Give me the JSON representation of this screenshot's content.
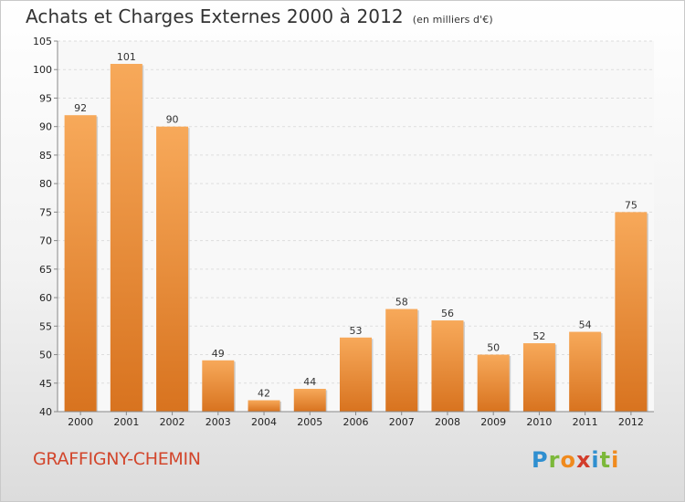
{
  "header": {
    "title": "Achats et Charges Externes 2000 à 2012",
    "subtitle": "(en milliers d'€)"
  },
  "footer": {
    "place": "GRAFFIGNY-CHEMIN",
    "brand_letters": [
      {
        "ch": "P",
        "color": "#2f8fd0"
      },
      {
        "ch": "r",
        "color": "#7cb83a"
      },
      {
        "ch": "o",
        "color": "#f08a1d"
      },
      {
        "ch": "x",
        "color": "#d23c2b"
      },
      {
        "ch": "i",
        "color": "#2f8fd0"
      },
      {
        "ch": "t",
        "color": "#7cb83a"
      },
      {
        "ch": "i",
        "color": "#f08a1d"
      }
    ]
  },
  "chart_data": {
    "type": "bar",
    "categories": [
      "2000",
      "2001",
      "2002",
      "2003",
      "2004",
      "2005",
      "2006",
      "2007",
      "2008",
      "2009",
      "2010",
      "2011",
      "2012"
    ],
    "values": [
      92,
      101,
      90,
      49,
      42,
      44,
      53,
      58,
      56,
      50,
      52,
      54,
      75
    ],
    "ylim": [
      40,
      105
    ],
    "yticks": [
      40,
      45,
      50,
      55,
      60,
      65,
      70,
      75,
      80,
      85,
      90,
      95,
      100,
      105
    ],
    "grid": true,
    "bar_color_top": "#f7a95a",
    "bar_color_bottom": "#d8731f"
  }
}
